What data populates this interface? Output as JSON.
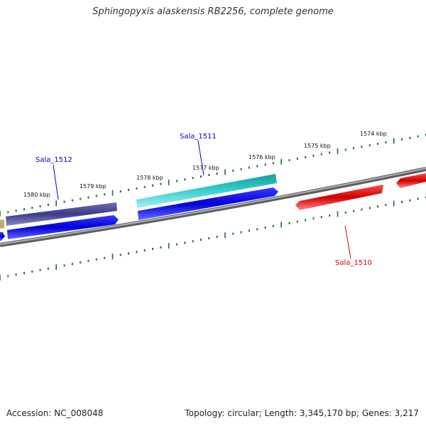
{
  "title": "Sphingopyxis alaskensis RB2256, complete genome",
  "footer": {
    "accession": "Accession: NC_008048",
    "summary": "Topology: circular; Length: 3,345,170 bp; Genes: 3,217"
  },
  "kbp_labels": [
    "1580 kbp",
    "1579 kbp",
    "1578 kbp",
    "1577 kbp",
    "1576 kbp",
    "1575 kbp",
    "1574 kbp"
  ],
  "genes": [
    {
      "name": "Sala_1512",
      "color": "#0000cc"
    },
    {
      "name": "Sala_1511",
      "color": "#0000cc"
    },
    {
      "name": "Sala_1510",
      "color": "#dd0000"
    }
  ],
  "colors": {
    "backbone": "#808080",
    "tick": "#1f6f1f",
    "forward_gene": "#0000ee",
    "reverse_gene": "#ee0000",
    "feature_purple": "#4a4a9a",
    "feature_cyan": "#33cccc",
    "feature_olive": "#b5b06a"
  }
}
